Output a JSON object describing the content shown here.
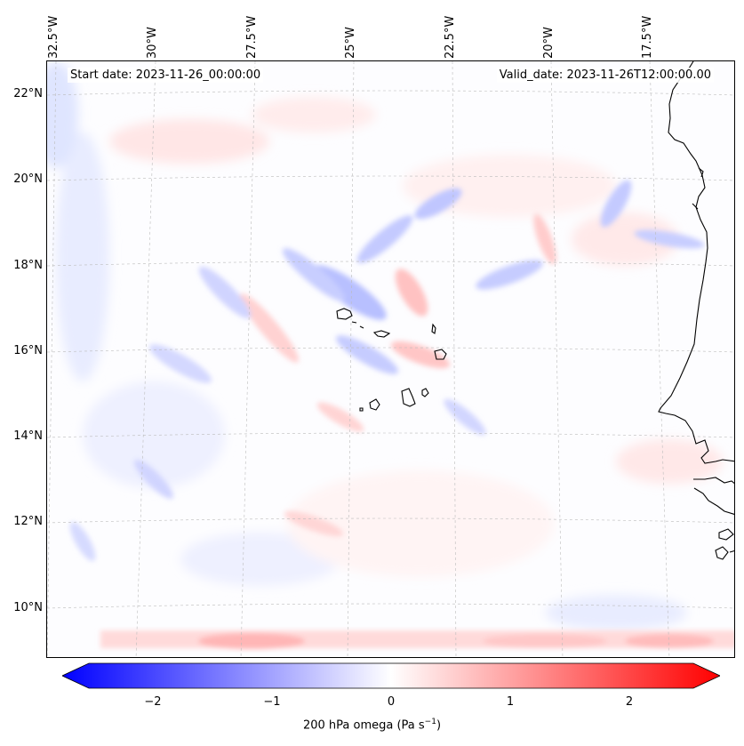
{
  "map": {
    "start_label": "Start date: 2023-11-26_00:00:00",
    "valid_label": "Valid_date: 2023-11-26T12:00:00.00",
    "lon_ticks": [
      "32.5°W",
      "30°W",
      "27.5°W",
      "25°W",
      "22.5°W",
      "20°W",
      "17.5°W"
    ],
    "lat_ticks": [
      "22°N",
      "20°N",
      "18°N",
      "16°N",
      "14°N",
      "12°N",
      "10°N"
    ],
    "field_colormap": "bwr",
    "field_range": [
      -2.5,
      2.5
    ]
  },
  "colorbar": {
    "ticks": [
      "−2",
      "−1",
      "0",
      "1",
      "2"
    ],
    "tick_values": [
      -2,
      -1,
      0,
      1,
      2
    ],
    "title_text": "200 hPa omega (Pa s",
    "title_sup": "−1",
    "title_close": ")",
    "neg_color": "#0000ff",
    "mid_color": "#ffffff",
    "pos_color": "#ff0000"
  }
}
